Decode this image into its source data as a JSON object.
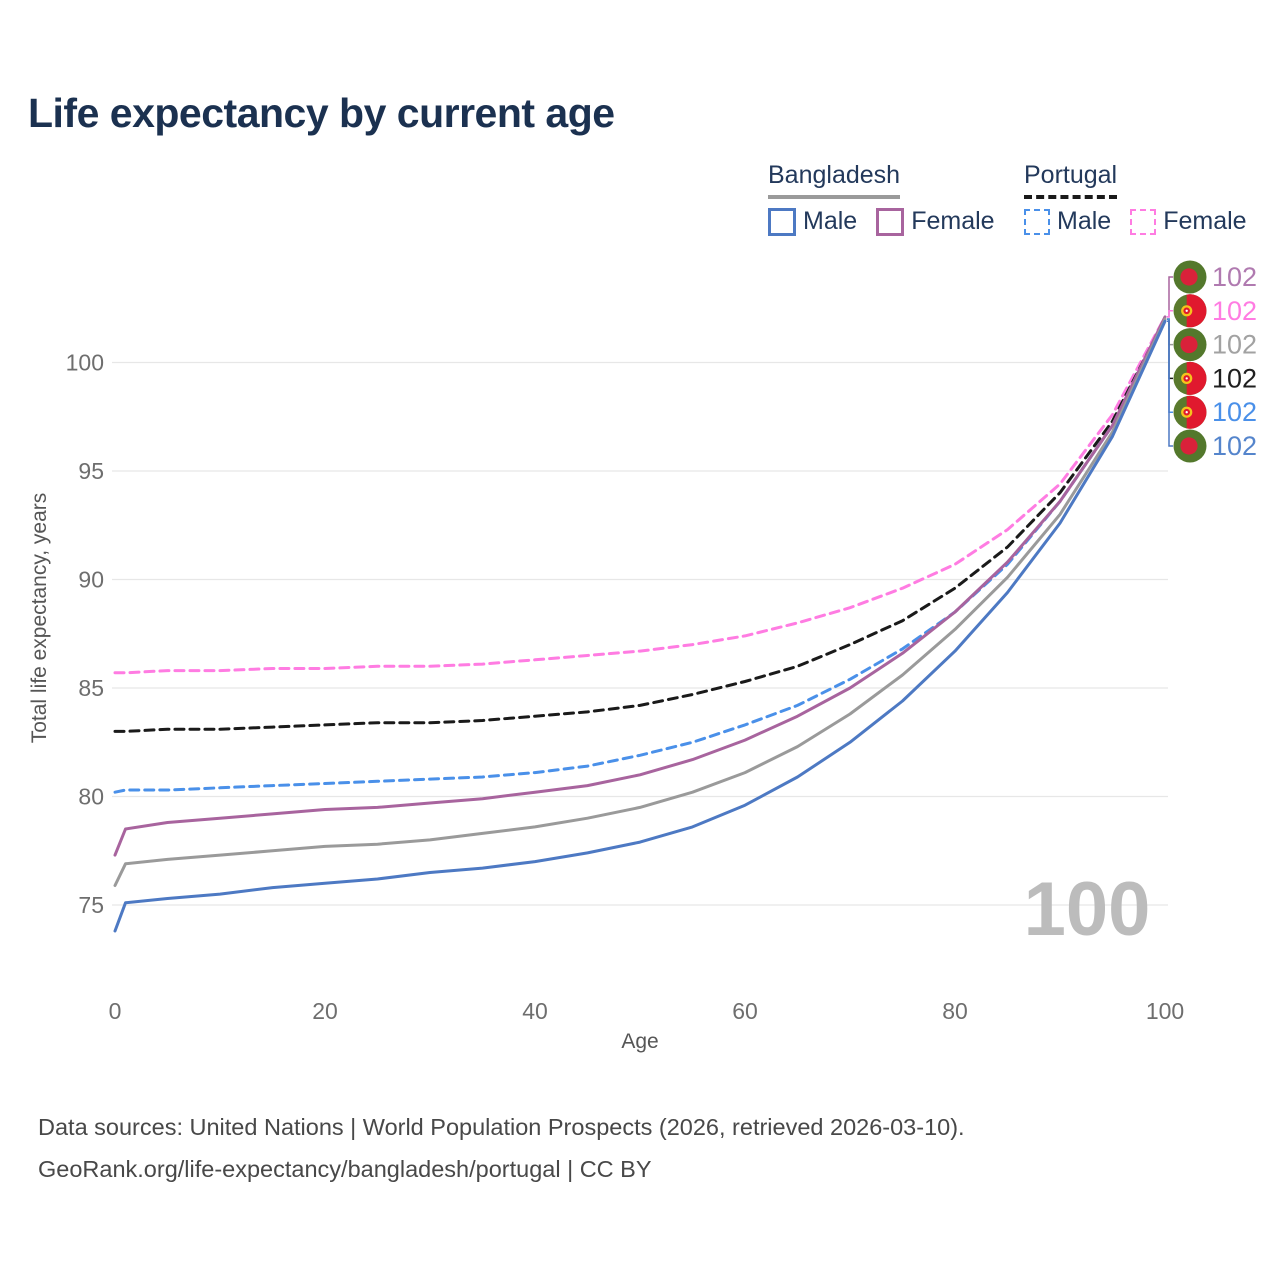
{
  "title": "Life expectancy by current age",
  "watermark_age": "100",
  "legend": {
    "groups": [
      {
        "country": "Bangladesh",
        "line_style": "solid",
        "underline_color_key": "bangladesh_total",
        "items": [
          {
            "label": "Male",
            "color_key": "bangladesh_male",
            "dashed": false
          },
          {
            "label": "Female",
            "color_key": "bangladesh_female",
            "dashed": false
          }
        ]
      },
      {
        "country": "Portugal",
        "line_style": "dashed",
        "underline_color_key": "portugal_total",
        "items": [
          {
            "label": "Male",
            "color_key": "portugal_male",
            "dashed": true
          },
          {
            "label": "Female",
            "color_key": "portugal_female",
            "dashed": true
          }
        ]
      }
    ]
  },
  "colors": {
    "bangladesh_male": "#4d79c3",
    "bangladesh_female": "#a8649e",
    "bangladesh_total": "#9a9a9a",
    "portugal_male": "#4a90e9",
    "portugal_female": "#ff7ce2",
    "portugal_total": "#1a1a1a",
    "end_label_bangladesh_female": "#b07ab0",
    "end_label_portugal_female": "#ff7ce2",
    "end_label_bangladesh_total": "#a2a2a2",
    "end_label_portugal_total": "#1f1f1f",
    "end_label_portugal_male": "#4a90e9",
    "end_label_bangladesh_male": "#5585cc",
    "title_text": "#1b3150",
    "legend_text": "#23395b",
    "tick_text": "#6e6e6e",
    "axis_title_text": "#565656",
    "footer_text": "#484848",
    "gridline": "#e7e7e7",
    "watermark": "#bcbcbc",
    "flag_bd_green": "#53782c",
    "flag_bd_red": "#d9213a",
    "flag_pt_green": "#5a7a2d",
    "flag_pt_red": "#e0192e",
    "flag_pt_yellow": "#f6c31c",
    "flag_pt_white": "#ffffff"
  },
  "chart_data": {
    "type": "line",
    "title": "Life expectancy by current age",
    "xlabel": "Age",
    "ylabel": "Total life expectancy, years",
    "xlim": [
      0,
      100
    ],
    "ylim": [
      73,
      103
    ],
    "xticks": [
      0,
      20,
      40,
      60,
      80,
      100
    ],
    "yticks": [
      75,
      80,
      85,
      90,
      95,
      100
    ],
    "grid": "horizontal-only",
    "legend_position": "top-right",
    "x": [
      0,
      1,
      5,
      10,
      15,
      20,
      25,
      30,
      35,
      40,
      45,
      50,
      55,
      60,
      65,
      70,
      75,
      80,
      85,
      90,
      95,
      100
    ],
    "series": [
      {
        "key": "portugal_female",
        "name": "Portugal Female",
        "country": "Portugal",
        "sex": "Female",
        "dashed": true,
        "end_label": "102",
        "values": [
          85.7,
          85.7,
          85.8,
          85.8,
          85.9,
          85.9,
          86.0,
          86.0,
          86.1,
          86.3,
          86.5,
          86.7,
          87.0,
          87.4,
          88.0,
          88.7,
          89.6,
          90.7,
          92.3,
          94.4,
          97.6,
          102.1
        ]
      },
      {
        "key": "portugal_total",
        "name": "Portugal",
        "country": "Portugal",
        "sex": "Both sexes",
        "dashed": true,
        "end_label": "102",
        "values": [
          83.0,
          83.0,
          83.1,
          83.1,
          83.2,
          83.3,
          83.4,
          83.4,
          83.5,
          83.7,
          83.9,
          84.2,
          84.7,
          85.3,
          86.0,
          87.0,
          88.1,
          89.6,
          91.5,
          94.0,
          97.3,
          102.0
        ]
      },
      {
        "key": "portugal_male",
        "name": "Portugal Male",
        "country": "Portugal",
        "sex": "Male",
        "dashed": true,
        "end_label": "102",
        "values": [
          80.2,
          80.3,
          80.3,
          80.4,
          80.5,
          80.6,
          80.7,
          80.8,
          80.9,
          81.1,
          81.4,
          81.9,
          82.5,
          83.3,
          84.2,
          85.4,
          86.8,
          88.5,
          90.7,
          93.6,
          97.1,
          102.0
        ]
      },
      {
        "key": "bangladesh_female",
        "name": "Bangladesh Female",
        "country": "Bangladesh",
        "sex": "Female",
        "dashed": false,
        "end_label": "102",
        "values": [
          77.3,
          78.5,
          78.8,
          79.0,
          79.2,
          79.4,
          79.5,
          79.7,
          79.9,
          80.2,
          80.5,
          81.0,
          81.7,
          82.6,
          83.7,
          85.0,
          86.6,
          88.5,
          90.8,
          93.6,
          97.1,
          102.1
        ]
      },
      {
        "key": "bangladesh_total",
        "name": "Bangladesh",
        "country": "Bangladesh",
        "sex": "Both sexes",
        "dashed": false,
        "end_label": "102",
        "values": [
          75.9,
          76.9,
          77.1,
          77.3,
          77.5,
          77.7,
          77.8,
          78.0,
          78.3,
          78.6,
          79.0,
          79.5,
          80.2,
          81.1,
          82.3,
          83.8,
          85.6,
          87.7,
          90.1,
          93.0,
          96.8,
          102.0
        ]
      },
      {
        "key": "bangladesh_male",
        "name": "Bangladesh Male",
        "country": "Bangladesh",
        "sex": "Male",
        "dashed": false,
        "end_label": "102",
        "values": [
          73.8,
          75.1,
          75.3,
          75.5,
          75.8,
          76.0,
          76.2,
          76.5,
          76.7,
          77.0,
          77.4,
          77.9,
          78.6,
          79.6,
          80.9,
          82.5,
          84.4,
          86.7,
          89.4,
          92.6,
          96.6,
          101.9
        ]
      }
    ],
    "end_labels_top_to_bottom": [
      {
        "series_key": "bangladesh_female",
        "flag": "bangladesh",
        "value": "102",
        "color_key": "end_label_bangladesh_female"
      },
      {
        "series_key": "portugal_female",
        "flag": "portugal",
        "value": "102",
        "color_key": "end_label_portugal_female"
      },
      {
        "series_key": "bangladesh_total",
        "flag": "bangladesh",
        "value": "102",
        "color_key": "end_label_bangladesh_total"
      },
      {
        "series_key": "portugal_total",
        "flag": "portugal",
        "value": "102",
        "color_key": "end_label_portugal_total"
      },
      {
        "series_key": "portugal_male",
        "flag": "portugal",
        "value": "102",
        "color_key": "end_label_portugal_male"
      },
      {
        "series_key": "bangladesh_male",
        "flag": "bangladesh",
        "value": "102",
        "color_key": "end_label_bangladesh_male"
      }
    ]
  },
  "footer": {
    "line1": "Data sources: United Nations | World Population Prospects (2026, retrieved 2026-03-10).",
    "line2": "GeoRank.org/life-expectancy/bangladesh/portugal | CC BY"
  }
}
